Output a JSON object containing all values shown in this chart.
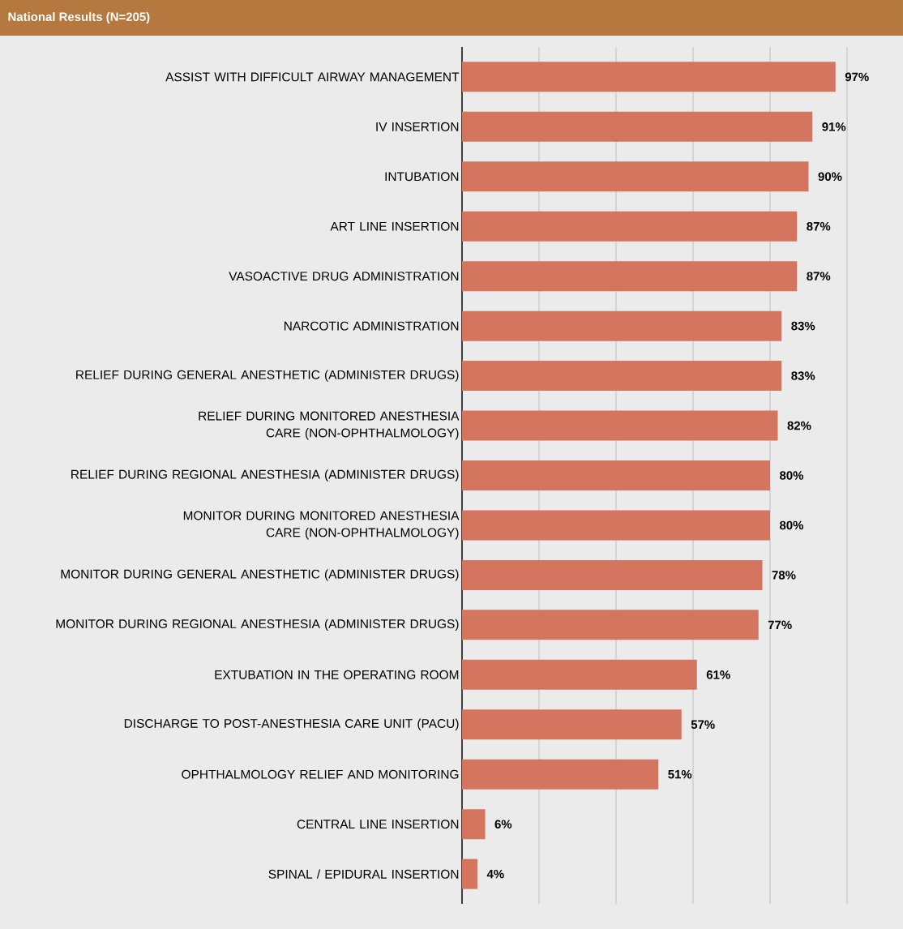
{
  "chart_data": {
    "type": "bar",
    "orientation": "horizontal",
    "title": "National Results (N=205)",
    "categories": [
      "ASSIST WITH DIFFICULT AIRWAY MANAGEMENT",
      "IV INSERTION",
      "INTUBATION",
      "ART LINE INSERTION",
      "VASOACTIVE DRUG ADMINISTRATION",
      "NARCOTIC ADMINISTRATION",
      "RELIEF DURING GENERAL ANESTHETIC (ADMINISTER DRUGS)",
      "RELIEF DURING MONITORED ANESTHESIA CARE (NON-OPHTHALMOLOGY)",
      "RELIEF DURING REGIONAL ANESTHESIA (ADMINISTER DRUGS)",
      "MONITOR DURING MONITORED ANESTHESIA CARE (NON-OPHTHALMOLOGY)",
      "MONITOR DURING GENERAL ANESTHETIC (ADMINISTER DRUGS)",
      "MONITOR DURING REGIONAL ANESTHESIA (ADMINISTER DRUGS)",
      "EXTUBATION IN THE OPERATING ROOM",
      "DISCHARGE TO POST-ANESTHESIA CARE UNIT (PACU)",
      "OPHTHALMOLOGY RELIEF AND MONITORING",
      "CENTRAL LINE INSERTION",
      "SPINAL / EPIDURAL INSERTION"
    ],
    "values": [
      97,
      91,
      90,
      87,
      87,
      83,
      83,
      82,
      80,
      80,
      78,
      77,
      61,
      57,
      51,
      6,
      4
    ],
    "value_labels": [
      "97%",
      "91%",
      "90%",
      "87%",
      "87%",
      "83%",
      "83%",
      "82%",
      "80%",
      "80%",
      "78%",
      "77%",
      "61%",
      "57%",
      "51%",
      "6%",
      "4%"
    ],
    "color": "#d4755f",
    "xlim": [
      0,
      100
    ],
    "xticks": [
      {
        "value": 0,
        "label": null
      },
      {
        "value": 20,
        "label": null
      },
      {
        "value": 40,
        "label": null
      },
      {
        "value": 60,
        "label": null
      },
      {
        "value": 80,
        "label": null
      },
      {
        "value": 100,
        "label": null
      }
    ],
    "grid": "x",
    "tick_labels": "y"
  }
}
